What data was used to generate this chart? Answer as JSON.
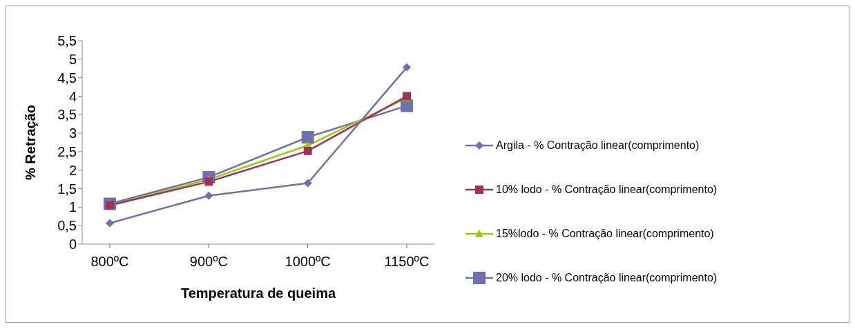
{
  "chart_data": {
    "type": "line",
    "xlabel": "Temperatura de queima",
    "ylabel": "% Retração",
    "categories": [
      "800ºC",
      "900ºC",
      "1000ºC",
      "1150ºC"
    ],
    "series": [
      {
        "name": "Argila - % Contração linear(comprimento)",
        "color": "#7070b0",
        "marker": "diamond",
        "values": [
          0.57,
          1.31,
          1.65,
          4.78
        ]
      },
      {
        "name": "10% lodo - % Contração linear(comprimento)",
        "color": "#a0305a",
        "marker": "square",
        "values": [
          1.05,
          1.69,
          2.52,
          4.0
        ]
      },
      {
        "name": "15%lodo - % Contração linear(comprimento)",
        "color": "#99cc00",
        "marker": "triangle",
        "values": [
          1.05,
          1.75,
          2.67,
          3.95
        ]
      },
      {
        "name": "20% lodo - % Contração linear(comprimento)",
        "color": "#7070b0",
        "marker": "square",
        "values": [
          1.09,
          1.81,
          2.89,
          3.74
        ]
      }
    ],
    "ylim": [
      0,
      5.5
    ],
    "yticks": [
      0,
      {
        "value": 0.5,
        "label": "0,5"
      },
      1,
      {
        "value": 1.5,
        "label": "1,5"
      },
      2,
      {
        "value": 2.5,
        "label": "2,5"
      },
      3,
      {
        "value": 3.5,
        "label": "3,5"
      },
      4,
      {
        "value": 4.5,
        "label": "4,5"
      },
      5,
      {
        "value": 5.5,
        "label": "5,5"
      }
    ],
    "grid": false,
    "legend": "right"
  }
}
